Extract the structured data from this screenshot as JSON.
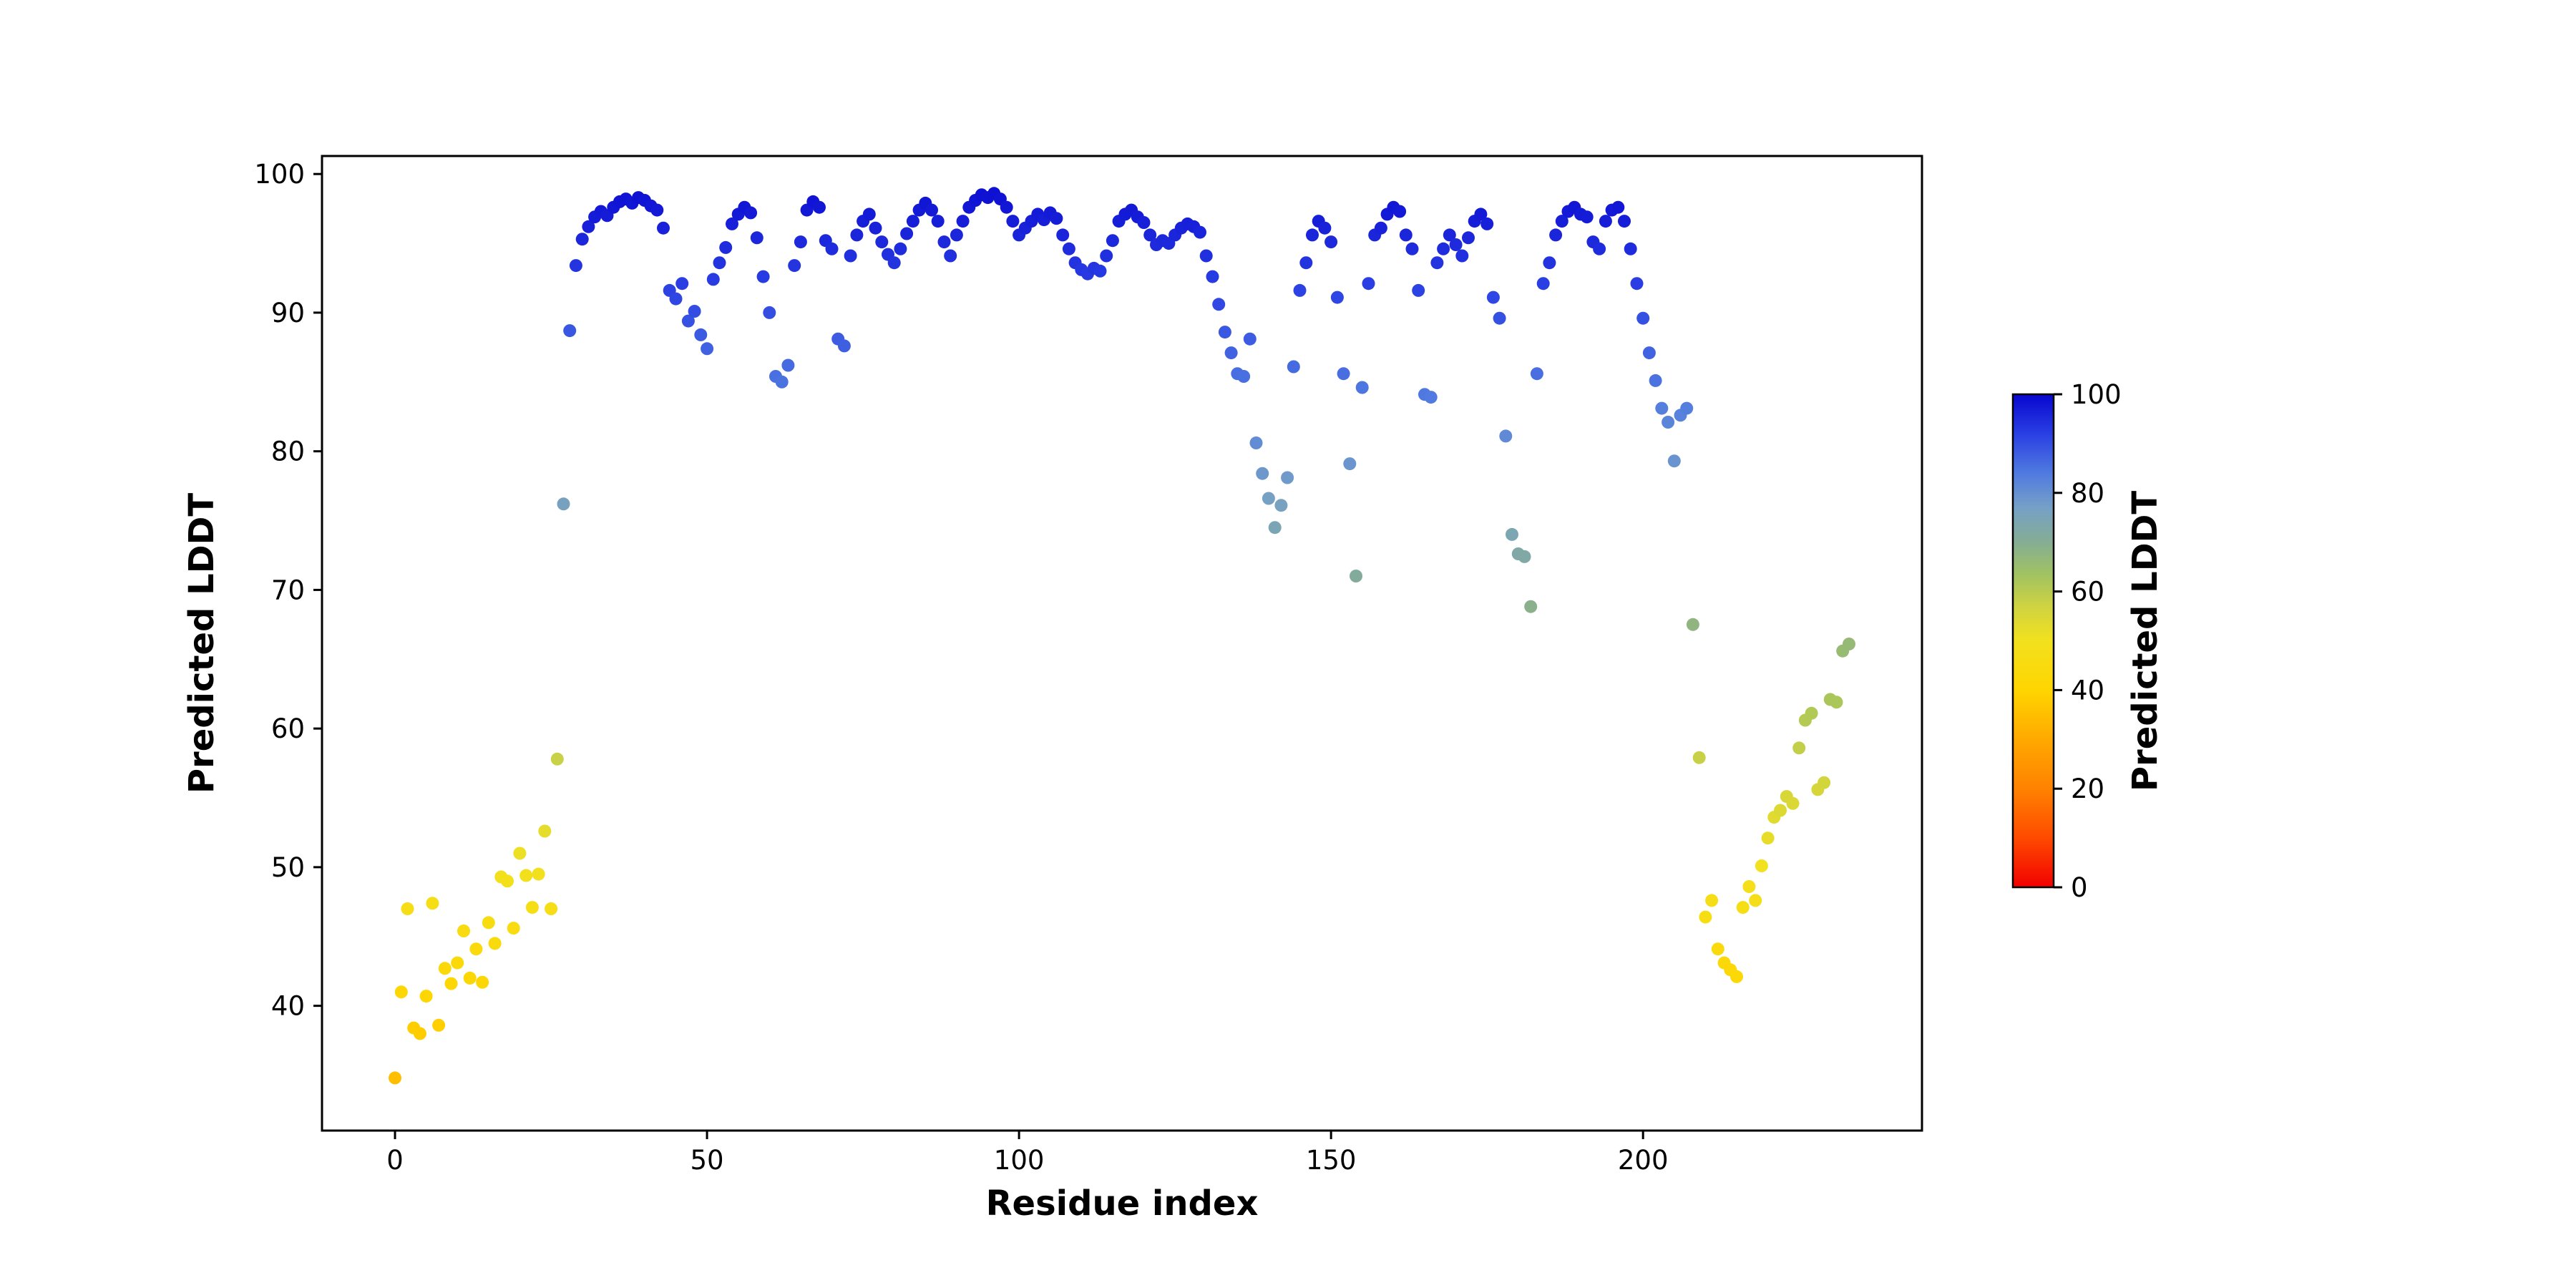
{
  "figure": {
    "background": "#ffffff"
  },
  "chart_data": {
    "type": "scatter",
    "title": "",
    "xlabel": "Residue index",
    "ylabel": "Predicted LDDT",
    "grid": false,
    "legend": null,
    "xlim": [
      -11.7,
      244.7
    ],
    "ylim": [
      31.0,
      101.3
    ],
    "x_ticks": [
      0,
      50,
      100,
      150,
      200
    ],
    "y_ticks": [
      40,
      50,
      60,
      70,
      80,
      90,
      100
    ],
    "colorbar": {
      "label": "Predicted LDDT",
      "ticks": [
        0,
        20,
        40,
        60,
        80,
        100
      ],
      "vmin": 0,
      "vmax": 100
    },
    "colormap_stops": [
      [
        0.0,
        "#f10000"
      ],
      [
        0.1,
        "#ff4a00"
      ],
      [
        0.2,
        "#ff8200"
      ],
      [
        0.3,
        "#ffa900"
      ],
      [
        0.4,
        "#ffd500"
      ],
      [
        0.5,
        "#f2e11e"
      ],
      [
        0.57,
        "#cfd342"
      ],
      [
        0.63,
        "#a3c45e"
      ],
      [
        0.7,
        "#85ad94"
      ],
      [
        0.77,
        "#76a0c6"
      ],
      [
        0.84,
        "#507ae0"
      ],
      [
        0.92,
        "#2a3fe3"
      ],
      [
        1.0,
        "#0806cf"
      ]
    ],
    "x": [
      0,
      1,
      2,
      3,
      4,
      5,
      6,
      7,
      8,
      9,
      10,
      11,
      12,
      13,
      14,
      15,
      16,
      17,
      18,
      19,
      20,
      21,
      22,
      23,
      24,
      25,
      26,
      27,
      28,
      29,
      30,
      31,
      32,
      33,
      34,
      35,
      36,
      37,
      38,
      39,
      40,
      41,
      42,
      43,
      44,
      45,
      46,
      47,
      48,
      49,
      50,
      51,
      52,
      53,
      54,
      55,
      56,
      57,
      58,
      59,
      60,
      61,
      62,
      63,
      64,
      65,
      66,
      67,
      68,
      69,
      70,
      71,
      72,
      73,
      74,
      75,
      76,
      77,
      78,
      79,
      80,
      81,
      82,
      83,
      84,
      85,
      86,
      87,
      88,
      89,
      90,
      91,
      92,
      93,
      94,
      95,
      96,
      97,
      98,
      99,
      100,
      101,
      102,
      103,
      104,
      105,
      106,
      107,
      108,
      109,
      110,
      111,
      112,
      113,
      114,
      115,
      116,
      117,
      118,
      119,
      120,
      121,
      122,
      123,
      124,
      125,
      126,
      127,
      128,
      129,
      130,
      131,
      132,
      133,
      134,
      135,
      136,
      137,
      138,
      139,
      140,
      141,
      142,
      143,
      144,
      145,
      146,
      147,
      148,
      149,
      150,
      151,
      152,
      153,
      154,
      155,
      156,
      157,
      158,
      159,
      160,
      161,
      162,
      163,
      164,
      165,
      166,
      167,
      168,
      169,
      170,
      171,
      172,
      173,
      174,
      175,
      176,
      177,
      178,
      179,
      180,
      181,
      182,
      183,
      184,
      185,
      186,
      187,
      188,
      189,
      190,
      191,
      192,
      193,
      194,
      195,
      196,
      197,
      198,
      199,
      200,
      201,
      202,
      203,
      204,
      205,
      206,
      207,
      208,
      209,
      210,
      211,
      212,
      213,
      214,
      215,
      216,
      217,
      218,
      219,
      220,
      221,
      222,
      223,
      224,
      225,
      226,
      227,
      228,
      229,
      230,
      231,
      232,
      233
    ],
    "y": [
      34.8,
      41.0,
      47.0,
      38.4,
      38.0,
      40.7,
      47.4,
      38.6,
      42.7,
      41.6,
      43.1,
      45.4,
      42.0,
      44.1,
      41.7,
      46.0,
      44.5,
      49.3,
      49.0,
      45.6,
      51.0,
      49.4,
      47.1,
      49.5,
      52.6,
      47.0,
      57.8,
      76.2,
      88.7,
      93.4,
      95.3,
      96.2,
      96.9,
      97.3,
      97.0,
      97.6,
      98.0,
      98.2,
      97.9,
      98.3,
      98.1,
      97.7,
      97.4,
      96.1,
      91.6,
      91.0,
      92.1,
      89.4,
      90.1,
      88.4,
      87.4,
      92.4,
      93.6,
      94.7,
      96.4,
      97.1,
      97.6,
      97.2,
      95.4,
      92.6,
      90.0,
      85.4,
      85.0,
      86.2,
      93.4,
      95.1,
      97.4,
      98.0,
      97.6,
      95.2,
      94.6,
      88.1,
      87.6,
      94.1,
      95.6,
      96.6,
      97.1,
      96.1,
      95.1,
      94.2,
      93.6,
      94.6,
      95.7,
      96.6,
      97.4,
      97.9,
      97.4,
      96.6,
      95.1,
      94.1,
      95.6,
      96.6,
      97.6,
      98.1,
      98.5,
      98.3,
      98.6,
      98.2,
      97.6,
      96.6,
      95.6,
      96.1,
      96.6,
      97.1,
      96.7,
      97.2,
      96.8,
      95.6,
      94.6,
      93.6,
      93.1,
      92.8,
      93.2,
      93.0,
      94.1,
      95.2,
      96.6,
      97.1,
      97.4,
      96.9,
      96.5,
      95.6,
      94.9,
      95.2,
      95.0,
      95.6,
      96.1,
      96.4,
      96.2,
      95.8,
      94.1,
      92.6,
      90.6,
      88.6,
      87.1,
      85.6,
      85.4,
      88.1,
      80.6,
      78.4,
      76.6,
      74.5,
      76.1,
      78.1,
      86.1,
      91.6,
      93.6,
      95.6,
      96.6,
      96.1,
      95.1,
      91.1,
      85.6,
      79.1,
      71.0,
      84.6,
      92.1,
      95.6,
      96.1,
      97.1,
      97.6,
      97.3,
      95.6,
      94.6,
      91.6,
      84.1,
      83.9,
      93.6,
      94.6,
      95.6,
      94.9,
      94.1,
      95.4,
      96.6,
      97.1,
      96.4,
      91.1,
      89.6,
      81.1,
      74.0,
      72.6,
      72.4,
      68.8,
      85.6,
      92.1,
      93.6,
      95.6,
      96.6,
      97.3,
      97.6,
      97.1,
      96.9,
      95.1,
      94.6,
      96.6,
      97.4,
      97.6,
      96.6,
      94.6,
      92.1,
      89.6,
      87.1,
      85.1,
      83.1,
      82.1,
      79.3,
      82.6,
      83.1,
      67.5,
      57.9,
      46.4,
      47.6,
      44.1,
      43.1,
      42.6,
      42.1,
      47.1,
      48.6,
      47.6,
      50.1,
      52.1,
      53.6,
      54.1,
      55.1,
      54.6,
      58.6,
      60.6,
      61.1,
      55.6,
      56.1,
      62.1,
      61.9,
      65.6,
      66.1
    ]
  }
}
